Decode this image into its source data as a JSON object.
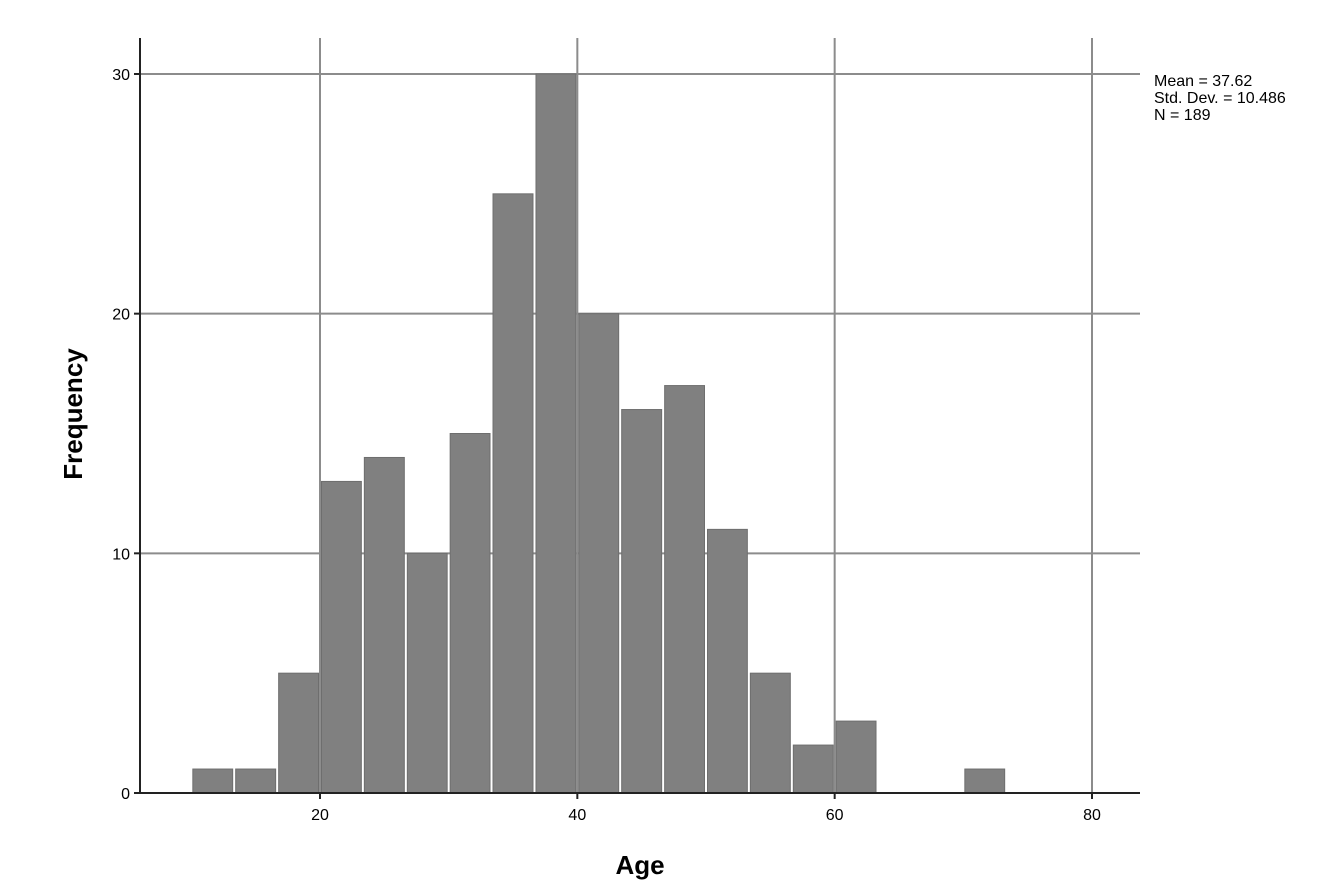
{
  "chart_data": {
    "type": "bar",
    "subtype": "histogram",
    "xlabel": "Age",
    "ylabel": "Frequency",
    "xlim": [
      5,
      84
    ],
    "ylim": [
      0,
      31.5
    ],
    "xticks": [
      20,
      40,
      60,
      80
    ],
    "yticks": [
      0,
      10,
      20,
      30
    ],
    "bin_width": 3.33,
    "bins": [
      {
        "start": 10.0,
        "end": 13.33,
        "count": 1
      },
      {
        "start": 13.33,
        "end": 16.67,
        "count": 1
      },
      {
        "start": 16.67,
        "end": 20.0,
        "count": 5
      },
      {
        "start": 20.0,
        "end": 23.33,
        "count": 13
      },
      {
        "start": 23.33,
        "end": 26.67,
        "count": 14
      },
      {
        "start": 26.67,
        "end": 30.0,
        "count": 10
      },
      {
        "start": 30.0,
        "end": 33.33,
        "count": 15
      },
      {
        "start": 33.33,
        "end": 36.67,
        "count": 25
      },
      {
        "start": 36.67,
        "end": 40.0,
        "count": 30
      },
      {
        "start": 40.0,
        "end": 43.33,
        "count": 20
      },
      {
        "start": 43.33,
        "end": 46.67,
        "count": 16
      },
      {
        "start": 46.67,
        "end": 50.0,
        "count": 17
      },
      {
        "start": 50.0,
        "end": 53.33,
        "count": 11
      },
      {
        "start": 53.33,
        "end": 56.67,
        "count": 5
      },
      {
        "start": 56.67,
        "end": 60.0,
        "count": 2
      },
      {
        "start": 60.0,
        "end": 63.33,
        "count": 3
      },
      {
        "start": 70.0,
        "end": 73.33,
        "count": 1
      }
    ],
    "grid": true,
    "bar_color": "#808080",
    "grid_color": "#8c8c8c",
    "stats": {
      "mean": "Mean = 37.62",
      "std_dev": "Std. Dev. = 10.486",
      "n": "N = 189"
    },
    "legend_position": "top-right"
  }
}
